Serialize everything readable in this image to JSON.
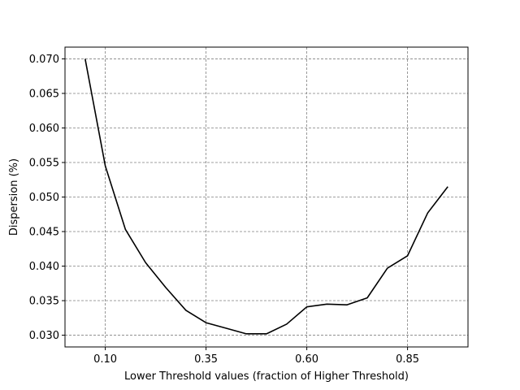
{
  "chart_data": {
    "type": "line",
    "title": "",
    "xlabel": "Lower Threshold values (fraction of Higher Threshold)",
    "ylabel": "Dispersion (%)",
    "xlim": [
      0.0,
      1.0
    ],
    "ylim": [
      0.0283,
      0.0717
    ],
    "xticks": [
      0.1,
      0.35,
      0.6,
      0.85
    ],
    "xtick_labels": [
      "0.10",
      "0.35",
      "0.60",
      "0.85"
    ],
    "yticks": [
      0.03,
      0.035,
      0.04,
      0.045,
      0.05,
      0.055,
      0.06,
      0.065,
      0.07
    ],
    "ytick_labels": [
      "0.030",
      "0.035",
      "0.040",
      "0.045",
      "0.050",
      "0.055",
      "0.060",
      "0.065",
      "0.070"
    ],
    "grid": true,
    "legend": "none",
    "line_color": "#000000",
    "grid_color": "#808080",
    "series": [
      {
        "x": [
          0.05,
          0.1,
          0.15,
          0.2,
          0.25,
          0.3,
          0.35,
          0.4,
          0.45,
          0.5,
          0.55,
          0.6,
          0.65,
          0.7,
          0.75,
          0.8,
          0.85,
          0.9,
          0.95
        ],
        "values": [
          0.07,
          0.0545,
          0.0453,
          0.0405,
          0.0369,
          0.0336,
          0.0318,
          0.031,
          0.0302,
          0.0302,
          0.0316,
          0.0341,
          0.0345,
          0.0344,
          0.0354,
          0.0397,
          0.0415,
          0.0477,
          0.0515
        ]
      }
    ]
  }
}
